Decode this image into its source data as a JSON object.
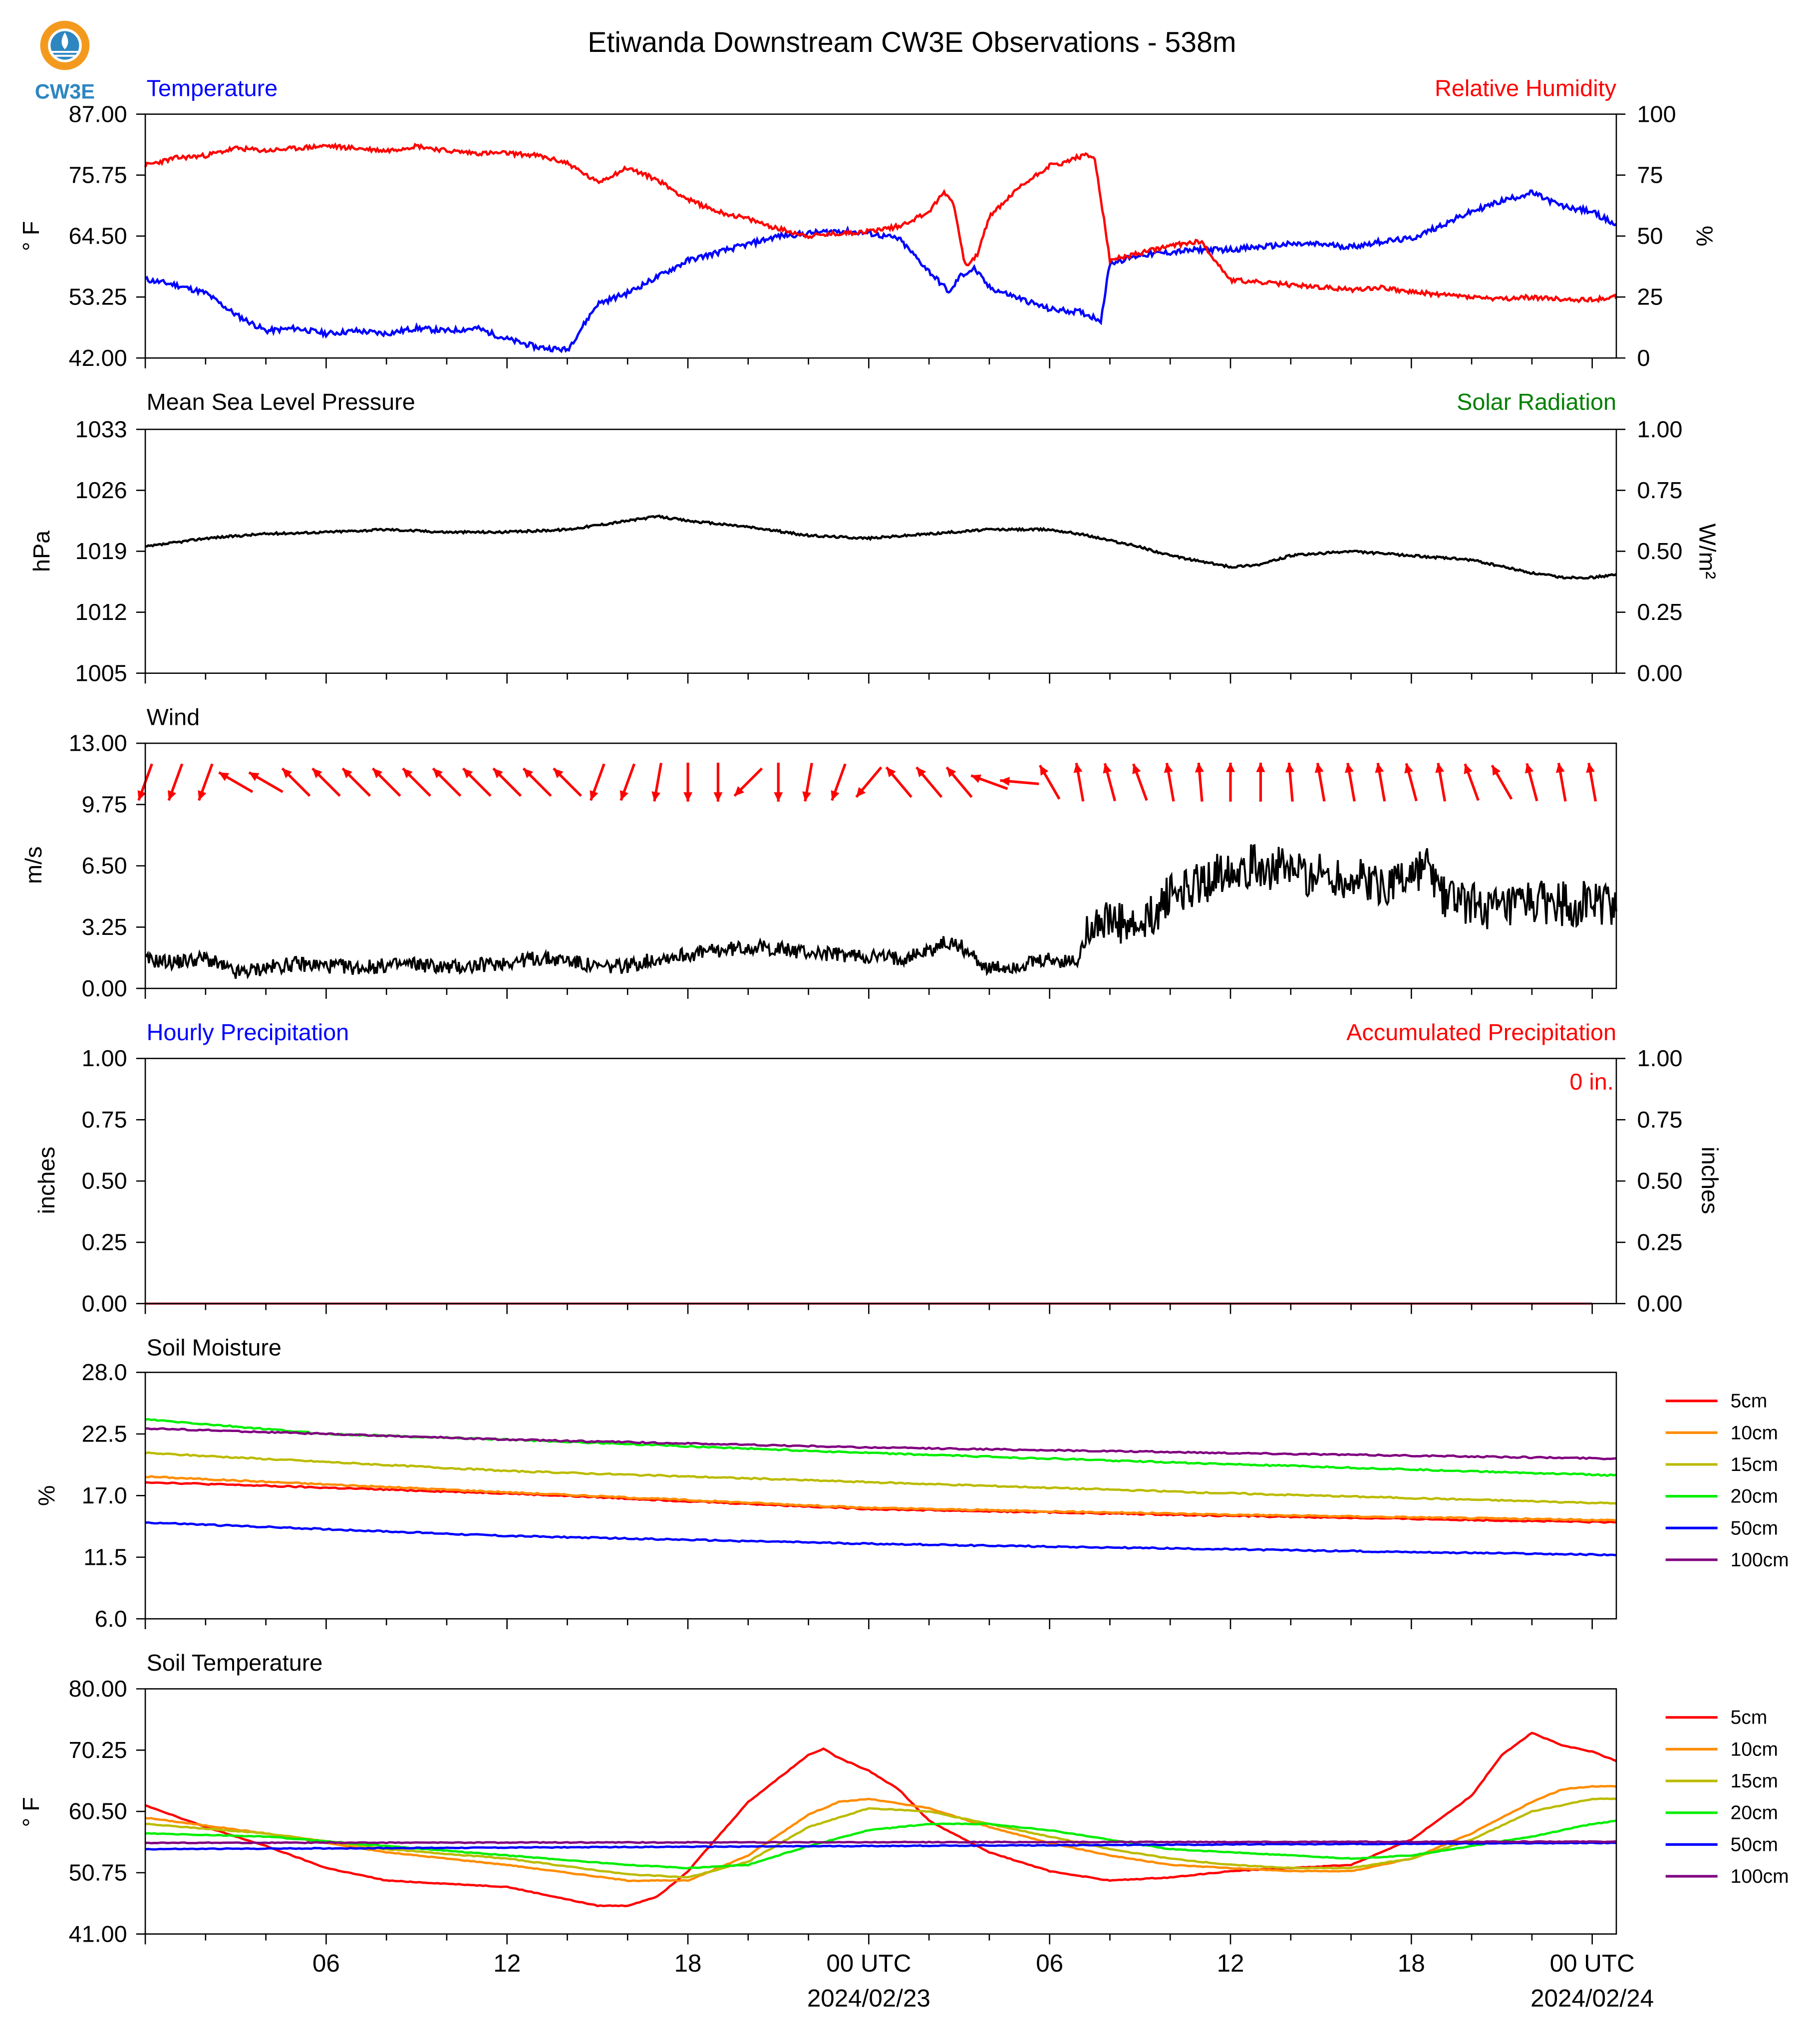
{
  "title": "Etiwanda Downstream CW3E Observations - 538m",
  "logo": {
    "text": "CW3E",
    "colors": {
      "ring": "#F39A1E",
      "drop": "#2E86C1",
      "text": "#2E86C1"
    }
  },
  "colors": {
    "temp": "#0000FF",
    "rh": "#FF0000",
    "pressure": "#000000",
    "solar": "#008000",
    "wind": "#000000",
    "arrow": "#FF0000",
    "hourly": "#0000FF",
    "accum": "#FF0000"
  },
  "x_axis": {
    "ticks": [
      {
        "h": 6,
        "label": "06"
      },
      {
        "h": 12,
        "label": "12"
      },
      {
        "h": 18,
        "label": "18"
      },
      {
        "h": 24,
        "label": "00 UTC",
        "date": "2024/02/23"
      },
      {
        "h": 30,
        "label": "06"
      },
      {
        "h": 36,
        "label": "12"
      },
      {
        "h": 42,
        "label": "18"
      },
      {
        "h": 48,
        "label": "00 UTC",
        "date": "2024/02/24"
      }
    ]
  },
  "panels": {
    "temperature": {
      "left_title": "Temperature",
      "right_title": "Relative Humidity",
      "left_unit": "° F",
      "right_unit": "%",
      "left_ticks": [
        "42.00",
        "53.25",
        "64.50",
        "75.75",
        "87.00"
      ],
      "right_ticks": [
        "0",
        "25",
        "50",
        "75",
        "100"
      ]
    },
    "pressure": {
      "left_title": "Mean Sea Level Pressure",
      "right_title": "Solar Radiation",
      "left_unit": "hPa",
      "right_unit": "W/m²",
      "left_ticks": [
        "1005",
        "1012",
        "1019",
        "1026",
        "1033"
      ],
      "right_ticks": [
        "0.00",
        "0.25",
        "0.50",
        "0.75",
        "1.00"
      ]
    },
    "wind": {
      "left_title": "Wind",
      "left_unit": "m/s",
      "left_ticks": [
        "0.00",
        "3.25",
        "6.50",
        "9.75",
        "13.00"
      ]
    },
    "precip": {
      "left_title": "Hourly Precipitation",
      "right_title": "Accumulated Precipitation",
      "left_unit": "inches",
      "right_unit": "inches",
      "annotation": "0 in.",
      "left_ticks": [
        "0.00",
        "0.25",
        "0.50",
        "0.75",
        "1.00"
      ],
      "right_ticks": [
        "0.00",
        "0.25",
        "0.50",
        "0.75",
        "1.00"
      ]
    },
    "soil_moisture": {
      "left_title": "Soil Moisture",
      "left_unit": "%",
      "left_ticks": [
        "6.0",
        "11.5",
        "17.0",
        "22.5",
        "28.0"
      ],
      "legend": [
        "5cm",
        "10cm",
        "15cm",
        "20cm",
        "50cm",
        "100cm"
      ]
    },
    "soil_temp": {
      "left_title": "Soil Temperature",
      "left_unit": "° F",
      "left_ticks": [
        "41.00",
        "50.75",
        "60.50",
        "70.25",
        "80.00"
      ],
      "legend": [
        "5cm",
        "10cm",
        "15cm",
        "20cm",
        "50cm",
        "100cm"
      ]
    }
  },
  "chart_data": [
    {
      "type": "line",
      "series": [
        {
          "name": "Temperature",
          "unit": "°F",
          "color": "#0000FF",
          "ylim": [
            42,
            87
          ],
          "x": [
            0,
            1,
            2,
            3,
            4,
            5,
            6,
            7,
            8,
            9,
            10,
            11,
            12,
            13,
            14,
            15,
            16,
            17,
            18,
            19,
            20,
            21,
            22,
            23,
            24,
            25,
            26,
            26.7,
            27,
            27.5,
            28,
            29,
            30,
            31,
            31.7,
            32,
            33,
            34,
            35,
            36,
            37,
            38,
            39,
            40,
            41,
            42,
            43,
            44,
            45,
            46,
            47,
            48,
            48.8
          ],
          "values": [
            56.5,
            55.5,
            54,
            50,
            47,
            47.5,
            46.5,
            47,
            46.5,
            47.5,
            47,
            47.5,
            45.5,
            44,
            43.5,
            52,
            54,
            57,
            60,
            61.5,
            63,
            64.5,
            65,
            65.5,
            65,
            64,
            58,
            54,
            57,
            58.5,
            55,
            53,
            51,
            50.5,
            49,
            59.5,
            61,
            61.5,
            62,
            62,
            62.5,
            63,
            63,
            62.5,
            63.5,
            64,
            66.5,
            69,
            71,
            72.5,
            70,
            69,
            66.5
          ]
        },
        {
          "name": "Relative Humidity",
          "unit": "%",
          "color": "#FF0000",
          "ylim": [
            0,
            100
          ],
          "x": [
            0,
            1,
            2,
            3,
            4,
            5,
            6,
            7,
            8,
            9,
            10,
            11,
            12,
            13,
            14,
            15,
            16,
            17,
            18,
            19,
            20,
            21,
            22,
            23,
            24,
            25,
            26,
            26.5,
            26.8,
            27.2,
            27.6,
            28,
            29,
            30,
            30.5,
            30.8,
            31.2,
            31.5,
            32,
            33,
            34,
            35,
            36,
            37,
            38,
            39,
            40,
            41,
            42,
            43,
            44,
            45,
            46,
            47,
            48,
            48.8
          ],
          "values": [
            79,
            82,
            83,
            86,
            85,
            86,
            87,
            86,
            85,
            87,
            85,
            84,
            84,
            83,
            80,
            72,
            78,
            73,
            65,
            60,
            57,
            53,
            50,
            51,
            52,
            54,
            60,
            68,
            64,
            38,
            42,
            58,
            70,
            79,
            80,
            82,
            83,
            82,
            40,
            43,
            46,
            48,
            32,
            31,
            30,
            29,
            28,
            29,
            27,
            26,
            25,
            24,
            25,
            24,
            24,
            25
          ]
        },
        {
          "name": "Mean Sea Level Pressure",
          "unit": "hPa",
          "color": "#000000",
          "ylim": [
            1005,
            1033
          ],
          "x": [
            0,
            2,
            4,
            6,
            8,
            10,
            12,
            14,
            16,
            17,
            18,
            20,
            22,
            24,
            26,
            28,
            30,
            31,
            33,
            34,
            36,
            37,
            38,
            40,
            42,
            44,
            46,
            47,
            48,
            48.8
          ],
          "values": [
            1019.5,
            1020.5,
            1021,
            1021.2,
            1021.5,
            1021.2,
            1021.2,
            1021.5,
            1022.5,
            1023,
            1022.5,
            1021.8,
            1020.8,
            1020.5,
            1021,
            1021.5,
            1021.5,
            1021,
            1019.5,
            1018.5,
            1017.2,
            1017.5,
            1018.5,
            1019,
            1018.5,
            1018,
            1016.5,
            1016,
            1016,
            1016.3
          ]
        },
        {
          "name": "Wind Speed",
          "unit": "m/s",
          "color": "#000000",
          "ylim": [
            0,
            13
          ],
          "x": [
            0,
            1,
            2,
            3,
            4,
            5,
            6,
            7,
            8,
            9,
            10,
            11,
            12,
            13,
            14,
            15,
            16,
            17,
            18,
            19,
            20,
            21,
            22,
            23,
            24,
            25,
            26,
            26.5,
            27,
            28,
            29,
            30,
            30.5,
            31,
            31.2,
            32,
            33,
            33.5,
            34,
            35,
            36,
            37,
            38,
            39,
            40,
            41,
            42,
            42.5,
            43,
            44,
            45,
            46,
            47,
            48,
            48.8
          ],
          "values": [
            1.5,
            1.4,
            1.6,
            0.8,
            1.1,
            1.3,
            1.2,
            1.1,
            1.2,
            1.3,
            1.1,
            1.2,
            1.4,
            1.6,
            1.5,
            1.1,
            1.2,
            1.6,
            1.8,
            2.0,
            2.2,
            2.1,
            1.9,
            1.8,
            1.7,
            1.6,
            2.0,
            2.4,
            2.3,
            1.0,
            1.2,
            1.5,
            1.4,
            1.5,
            3.5,
            3.5,
            3.0,
            4.0,
            5.0,
            5.5,
            6.5,
            6.5,
            6.2,
            6.0,
            5.8,
            5.5,
            6.0,
            6.5,
            5.0,
            4.5,
            4.0,
            4.5,
            4.5,
            4.5,
            4.5
          ]
        },
        {
          "name": "Wind Direction (arrows)",
          "unit": "deg",
          "color": "#FF0000",
          "x": [
            0,
            1,
            2,
            3,
            4,
            5,
            6,
            7,
            8,
            9,
            10,
            11,
            12,
            13,
            14,
            15,
            16,
            17,
            18,
            19,
            20,
            21,
            22,
            23,
            24,
            25,
            26,
            27,
            28,
            29,
            30,
            31,
            32,
            33,
            34,
            35,
            36,
            37,
            38,
            39,
            40,
            41,
            42,
            43,
            44,
            45,
            46,
            47,
            48
          ],
          "values": [
            200,
            200,
            200,
            300,
            300,
            315,
            315,
            315,
            315,
            315,
            315,
            315,
            315,
            315,
            315,
            200,
            200,
            190,
            180,
            180,
            225,
            180,
            190,
            200,
            220,
            320,
            320,
            320,
            290,
            275,
            330,
            350,
            345,
            340,
            350,
            355,
            0,
            0,
            355,
            350,
            350,
            350,
            345,
            350,
            340,
            330,
            345,
            350,
            350
          ]
        },
        {
          "name": "Hourly Precipitation",
          "unit": "inches",
          "color": "#0000FF",
          "ylim": [
            0,
            1
          ],
          "x": [
            0,
            48.8
          ],
          "values": [
            0,
            0
          ]
        },
        {
          "name": "Accumulated Precipitation",
          "unit": "inches",
          "color": "#FF0000",
          "ylim": [
            0,
            1
          ],
          "x": [
            0,
            48.8
          ],
          "values": [
            0,
            0
          ]
        }
      ]
    },
    {
      "type": "line",
      "ylim": [
        6,
        28
      ],
      "series": [
        {
          "name": "5cm",
          "color": "#FF0000",
          "x": [
            0,
            12,
            24,
            36,
            48.8
          ],
          "values": [
            18.2,
            17.2,
            15.8,
            15.2,
            14.6
          ]
        },
        {
          "name": "10cm",
          "color": "#FF8C00",
          "x": [
            0,
            12,
            24,
            36,
            48.8
          ],
          "values": [
            18.7,
            17.3,
            15.9,
            15.3,
            14.8
          ]
        },
        {
          "name": "15cm",
          "color": "#BBBB00",
          "x": [
            0,
            12,
            24,
            36,
            48.8
          ],
          "values": [
            20.8,
            19.2,
            18.2,
            17.2,
            16.3
          ]
        },
        {
          "name": "20cm",
          "color": "#00EE00",
          "x": [
            0,
            6,
            12,
            24,
            36,
            48.8
          ],
          "values": [
            23.8,
            22.5,
            22.0,
            20.8,
            19.8,
            18.8
          ]
        },
        {
          "name": "50cm",
          "color": "#0000FF",
          "x": [
            0,
            12,
            24,
            36,
            48.8
          ],
          "values": [
            14.6,
            13.4,
            12.7,
            12.2,
            11.7
          ]
        },
        {
          "name": "100cm",
          "color": "#800080",
          "x": [
            0,
            12,
            24,
            36,
            48.8
          ],
          "values": [
            23.0,
            22.0,
            21.3,
            20.8,
            20.3
          ]
        }
      ]
    },
    {
      "type": "line",
      "ylim": [
        41,
        80
      ],
      "series": [
        {
          "name": "5cm",
          "color": "#FF0000",
          "x": [
            0,
            2,
            4,
            6,
            8,
            10,
            12,
            14,
            15,
            16,
            17,
            18,
            20,
            22,
            22.5,
            23,
            24,
            25,
            26,
            28,
            30,
            32,
            34,
            36,
            38,
            40,
            42,
            44,
            45,
            46,
            47,
            48,
            48.8
          ],
          "values": [
            61.5,
            58,
            55,
            51.5,
            49.5,
            49,
            48.5,
            46.5,
            45.5,
            45.5,
            47,
            51,
            62,
            69.5,
            70.5,
            69,
            67,
            64,
            59,
            54,
            51,
            49.5,
            50,
            51,
            51.5,
            52,
            56,
            63,
            69.5,
            73,
            71,
            70,
            68.5
          ]
        },
        {
          "name": "10cm",
          "color": "#FF8C00",
          "x": [
            0,
            4,
            8,
            12,
            16,
            18,
            20,
            22,
            23,
            24,
            26,
            28,
            30,
            32,
            34,
            36,
            38,
            40,
            42,
            44,
            46,
            47,
            48,
            48.8
          ],
          "values": [
            59.5,
            57,
            54,
            52,
            49.5,
            49.5,
            53.5,
            60,
            62,
            62.5,
            61,
            58,
            55.5,
            53.5,
            52,
            51.5,
            51,
            51,
            53,
            57,
            62,
            64,
            64.5,
            64.5
          ]
        },
        {
          "name": "15cm",
          "color": "#BBBB00",
          "x": [
            0,
            4,
            8,
            12,
            16,
            18,
            20,
            22,
            24,
            26,
            28,
            30,
            32,
            34,
            36,
            38,
            40,
            42,
            44,
            46,
            48,
            48.8
          ],
          "values": [
            58.5,
            57,
            54.5,
            53,
            50.5,
            50,
            52.5,
            58,
            61,
            60.5,
            58.5,
            56.5,
            54.5,
            53,
            52,
            51.5,
            51.5,
            53,
            56,
            60.5,
            62.5,
            62.5
          ]
        },
        {
          "name": "20cm",
          "color": "#00EE00",
          "x": [
            0,
            4,
            8,
            12,
            16,
            18,
            20,
            22,
            24,
            26,
            28,
            30,
            32,
            34,
            36,
            38,
            40,
            42,
            44,
            46,
            48,
            48.8
          ],
          "values": [
            57,
            56.5,
            55,
            53.5,
            52,
            51.5,
            52,
            55,
            57.5,
            58.5,
            58.5,
            57.5,
            56,
            54.5,
            54,
            53.5,
            53,
            53.5,
            55,
            56.5,
            58.5,
            59
          ]
        },
        {
          "name": "50cm",
          "color": "#0000FF",
          "x": [
            0,
            24,
            48.8
          ],
          "values": [
            54.5,
            55,
            55.5
          ]
        },
        {
          "name": "100cm",
          "color": "#800080",
          "x": [
            0,
            24,
            48.8
          ],
          "values": [
            55.5,
            55.6,
            55.7
          ]
        }
      ]
    }
  ]
}
